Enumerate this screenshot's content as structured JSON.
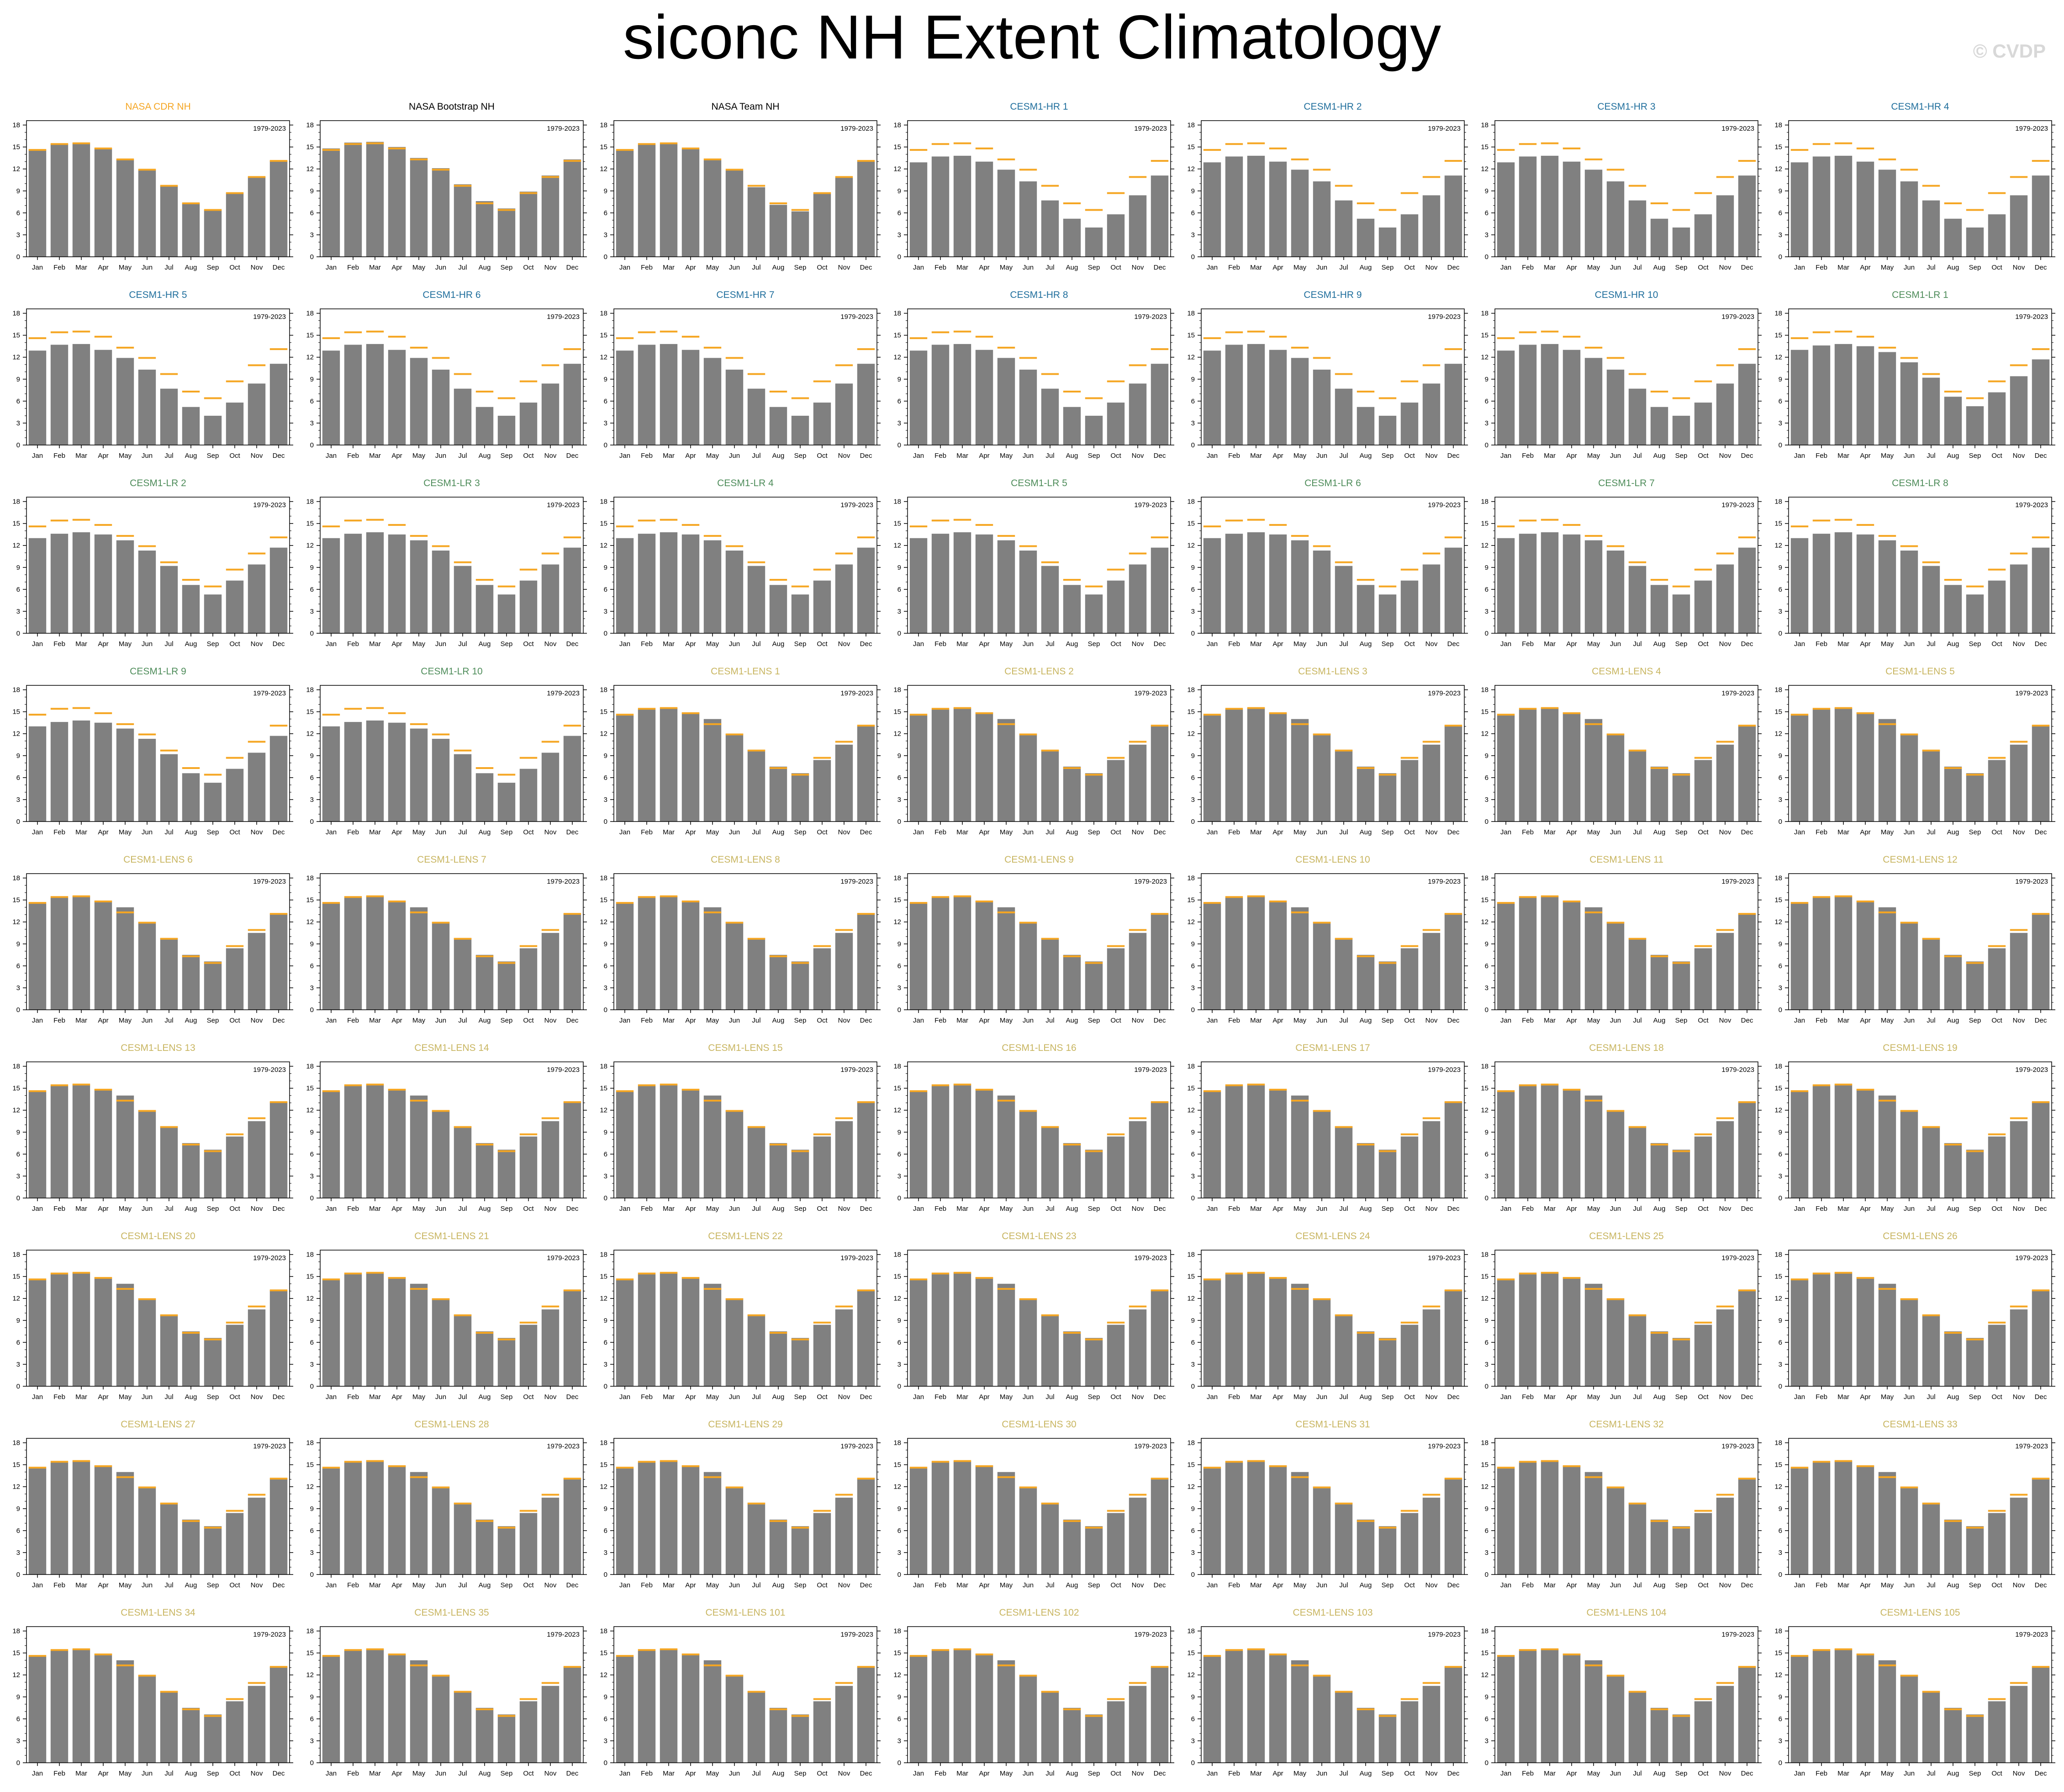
{
  "title": "siconc NH Extent Climatology",
  "watermark": "© CVDP",
  "colors": {
    "bar": "#808080",
    "obs_line": "#f5a623",
    "title_obs": "#f5a623",
    "title_black": "#000000",
    "title_hr": "#1f6e9c",
    "title_lr": "#4e8c5a",
    "title_lens": "#c8b560"
  },
  "chart_data": {
    "type": "bar",
    "panel_count": 63,
    "categories": [
      "Jan",
      "Feb",
      "Mar",
      "Apr",
      "May",
      "Jun",
      "Jul",
      "Aug",
      "Sep",
      "Oct",
      "Nov",
      "Dec"
    ],
    "yticks": [
      "0",
      "3",
      "6",
      "9",
      "12",
      "15",
      "18"
    ],
    "ylim": [
      0,
      18.6
    ],
    "period": "1979-2023",
    "reference_series": {
      "name": "NASA CDR NH",
      "values": [
        14.6,
        15.4,
        15.5,
        14.8,
        13.3,
        11.9,
        9.7,
        7.3,
        6.4,
        8.7,
        10.9,
        13.1
      ]
    },
    "profiles": {
      "obs_cdr": [
        14.6,
        15.4,
        15.5,
        14.8,
        13.3,
        11.9,
        9.7,
        7.3,
        6.4,
        8.7,
        10.9,
        13.1
      ],
      "obs_bootstrap": [
        14.8,
        15.6,
        15.7,
        15.0,
        13.5,
        12.1,
        9.9,
        7.6,
        6.6,
        8.9,
        11.1,
        13.3
      ],
      "obs_team": [
        14.5,
        15.3,
        15.4,
        14.7,
        13.2,
        11.8,
        9.5,
        7.1,
        6.2,
        8.6,
        10.8,
        13.0
      ],
      "hr": [
        12.9,
        13.7,
        13.8,
        13.0,
        11.9,
        10.3,
        7.7,
        5.2,
        4.0,
        5.8,
        8.4,
        11.1
      ],
      "lr": [
        13.0,
        13.6,
        13.8,
        13.5,
        12.7,
        11.3,
        9.2,
        6.6,
        5.3,
        7.2,
        9.4,
        11.7
      ],
      "lens": [
        14.5,
        15.3,
        15.5,
        14.9,
        14.0,
        12.0,
        9.8,
        7.5,
        6.6,
        8.4,
        10.5,
        13.1
      ]
    },
    "panels": [
      {
        "title": "NASA CDR NH",
        "group": "obs_cdr",
        "title_color": "title_obs"
      },
      {
        "title": "NASA Bootstrap NH",
        "group": "obs_bootstrap",
        "title_color": "title_black"
      },
      {
        "title": "NASA Team NH",
        "group": "obs_team",
        "title_color": "title_black"
      },
      {
        "title": "CESM1-HR 1",
        "group": "hr",
        "title_color": "title_hr"
      },
      {
        "title": "CESM1-HR 2",
        "group": "hr",
        "title_color": "title_hr"
      },
      {
        "title": "CESM1-HR 3",
        "group": "hr",
        "title_color": "title_hr"
      },
      {
        "title": "CESM1-HR 4",
        "group": "hr",
        "title_color": "title_hr"
      },
      {
        "title": "CESM1-HR 5",
        "group": "hr",
        "title_color": "title_hr"
      },
      {
        "title": "CESM1-HR 6",
        "group": "hr",
        "title_color": "title_hr"
      },
      {
        "title": "CESM1-HR 7",
        "group": "hr",
        "title_color": "title_hr"
      },
      {
        "title": "CESM1-HR 8",
        "group": "hr",
        "title_color": "title_hr"
      },
      {
        "title": "CESM1-HR 9",
        "group": "hr",
        "title_color": "title_hr"
      },
      {
        "title": "CESM1-HR 10",
        "group": "hr",
        "title_color": "title_hr"
      },
      {
        "title": "CESM1-LR 1",
        "group": "lr",
        "title_color": "title_lr"
      },
      {
        "title": "CESM1-LR 2",
        "group": "lr",
        "title_color": "title_lr"
      },
      {
        "title": "CESM1-LR 3",
        "group": "lr",
        "title_color": "title_lr"
      },
      {
        "title": "CESM1-LR 4",
        "group": "lr",
        "title_color": "title_lr"
      },
      {
        "title": "CESM1-LR 5",
        "group": "lr",
        "title_color": "title_lr"
      },
      {
        "title": "CESM1-LR 6",
        "group": "lr",
        "title_color": "title_lr"
      },
      {
        "title": "CESM1-LR 7",
        "group": "lr",
        "title_color": "title_lr"
      },
      {
        "title": "CESM1-LR 8",
        "group": "lr",
        "title_color": "title_lr"
      },
      {
        "title": "CESM1-LR 9",
        "group": "lr",
        "title_color": "title_lr"
      },
      {
        "title": "CESM1-LR 10",
        "group": "lr",
        "title_color": "title_lr"
      },
      {
        "title": "CESM1-LENS 1",
        "group": "lens",
        "title_color": "title_lens"
      },
      {
        "title": "CESM1-LENS 2",
        "group": "lens",
        "title_color": "title_lens"
      },
      {
        "title": "CESM1-LENS 3",
        "group": "lens",
        "title_color": "title_lens"
      },
      {
        "title": "CESM1-LENS 4",
        "group": "lens",
        "title_color": "title_lens"
      },
      {
        "title": "CESM1-LENS 5",
        "group": "lens",
        "title_color": "title_lens"
      },
      {
        "title": "CESM1-LENS 6",
        "group": "lens",
        "title_color": "title_lens"
      },
      {
        "title": "CESM1-LENS 7",
        "group": "lens",
        "title_color": "title_lens"
      },
      {
        "title": "CESM1-LENS 8",
        "group": "lens",
        "title_color": "title_lens"
      },
      {
        "title": "CESM1-LENS 9",
        "group": "lens",
        "title_color": "title_lens"
      },
      {
        "title": "CESM1-LENS 10",
        "group": "lens",
        "title_color": "title_lens"
      },
      {
        "title": "CESM1-LENS 11",
        "group": "lens",
        "title_color": "title_lens"
      },
      {
        "title": "CESM1-LENS 12",
        "group": "lens",
        "title_color": "title_lens"
      },
      {
        "title": "CESM1-LENS 13",
        "group": "lens",
        "title_color": "title_lens"
      },
      {
        "title": "CESM1-LENS 14",
        "group": "lens",
        "title_color": "title_lens"
      },
      {
        "title": "CESM1-LENS 15",
        "group": "lens",
        "title_color": "title_lens"
      },
      {
        "title": "CESM1-LENS 16",
        "group": "lens",
        "title_color": "title_lens"
      },
      {
        "title": "CESM1-LENS 17",
        "group": "lens",
        "title_color": "title_lens"
      },
      {
        "title": "CESM1-LENS 18",
        "group": "lens",
        "title_color": "title_lens"
      },
      {
        "title": "CESM1-LENS 19",
        "group": "lens",
        "title_color": "title_lens"
      },
      {
        "title": "CESM1-LENS 20",
        "group": "lens",
        "title_color": "title_lens"
      },
      {
        "title": "CESM1-LENS 21",
        "group": "lens",
        "title_color": "title_lens"
      },
      {
        "title": "CESM1-LENS 22",
        "group": "lens",
        "title_color": "title_lens"
      },
      {
        "title": "CESM1-LENS 23",
        "group": "lens",
        "title_color": "title_lens"
      },
      {
        "title": "CESM1-LENS 24",
        "group": "lens",
        "title_color": "title_lens"
      },
      {
        "title": "CESM1-LENS 25",
        "group": "lens",
        "title_color": "title_lens"
      },
      {
        "title": "CESM1-LENS 26",
        "group": "lens",
        "title_color": "title_lens"
      },
      {
        "title": "CESM1-LENS 27",
        "group": "lens",
        "title_color": "title_lens"
      },
      {
        "title": "CESM1-LENS 28",
        "group": "lens",
        "title_color": "title_lens"
      },
      {
        "title": "CESM1-LENS 29",
        "group": "lens",
        "title_color": "title_lens"
      },
      {
        "title": "CESM1-LENS 30",
        "group": "lens",
        "title_color": "title_lens"
      },
      {
        "title": "CESM1-LENS 31",
        "group": "lens",
        "title_color": "title_lens"
      },
      {
        "title": "CESM1-LENS 32",
        "group": "lens",
        "title_color": "title_lens"
      },
      {
        "title": "CESM1-LENS 33",
        "group": "lens",
        "title_color": "title_lens"
      },
      {
        "title": "CESM1-LENS 34",
        "group": "lens",
        "title_color": "title_lens"
      },
      {
        "title": "CESM1-LENS 35",
        "group": "lens",
        "title_color": "title_lens"
      },
      {
        "title": "CESM1-LENS 101",
        "group": "lens",
        "title_color": "title_lens"
      },
      {
        "title": "CESM1-LENS 102",
        "group": "lens",
        "title_color": "title_lens"
      },
      {
        "title": "CESM1-LENS 103",
        "group": "lens",
        "title_color": "title_lens"
      },
      {
        "title": "CESM1-LENS 104",
        "group": "lens",
        "title_color": "title_lens"
      },
      {
        "title": "CESM1-LENS 105",
        "group": "lens",
        "title_color": "title_lens"
      }
    ]
  }
}
